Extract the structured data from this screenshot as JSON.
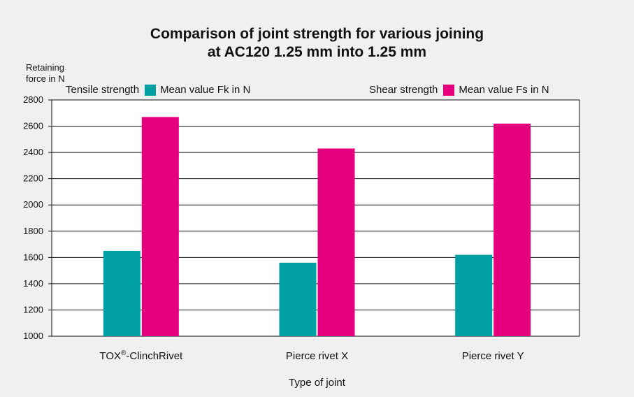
{
  "chart_data": {
    "type": "bar",
    "title": "Comparison of joint strength for various joining at AC120   1.25 mm into 1.25 mm",
    "title_line1": "Comparison of joint strength for various joining",
    "title_line2": "at AC120   1.25 mm into 1.25 mm",
    "ylabel": "Retaining force in N",
    "ylabel_line1": "Retaining",
    "ylabel_line2": "force in N",
    "xlabel": "Type of joint",
    "categories": [
      "TOX®-ClinchRivet",
      "Pierce rivet X",
      "Pierce rivet Y"
    ],
    "series": [
      {
        "name": "Mean value Fk in N",
        "group": "Tensile strength",
        "color": "#00a0a5",
        "values": [
          1650,
          1560,
          1620
        ]
      },
      {
        "name": "Mean value Fs in N",
        "group": "Shear strength",
        "color": "#e6007e",
        "values": [
          2670,
          2430,
          2620
        ]
      }
    ],
    "ylim": [
      1000,
      2800
    ],
    "yticks": [
      1000,
      1200,
      1400,
      1600,
      1800,
      2000,
      2200,
      2400,
      2600,
      2800
    ],
    "grid": true,
    "legend_placement": "top"
  }
}
